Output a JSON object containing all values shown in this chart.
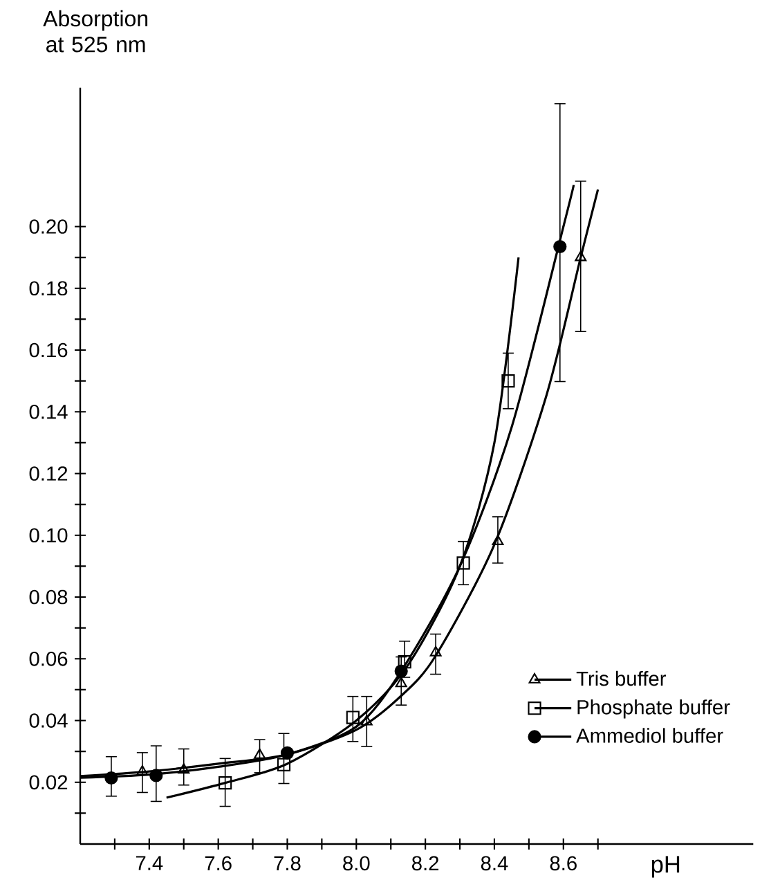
{
  "chart_data": {
    "type": "scatter",
    "xlabel": "pH",
    "ylabel": "Absorption at 525 nm",
    "xlim": [
      7.2,
      9.15
    ],
    "ylim": [
      0,
      0.245
    ],
    "xticks": [
      {
        "value": 7.3,
        "label": null
      },
      {
        "value": 7.4,
        "label": "7.4"
      },
      {
        "value": 7.5,
        "label": null
      },
      {
        "value": 7.6,
        "label": "7.6"
      },
      {
        "value": 7.7,
        "label": null
      },
      {
        "value": 7.8,
        "label": "7.8"
      },
      {
        "value": 7.9,
        "label": null
      },
      {
        "value": 8.0,
        "label": "8.0"
      },
      {
        "value": 8.1,
        "label": null
      },
      {
        "value": 8.2,
        "label": "8.2"
      },
      {
        "value": 8.3,
        "label": null
      },
      {
        "value": 8.4,
        "label": "8.4"
      },
      {
        "value": 8.5,
        "label": null
      },
      {
        "value": 8.6,
        "label": "8.6"
      },
      {
        "value": 8.7,
        "label": null
      }
    ],
    "yticks": [
      {
        "value": 0.01,
        "label": null
      },
      {
        "value": 0.02,
        "label": "0.02"
      },
      {
        "value": 0.03,
        "label": null
      },
      {
        "value": 0.04,
        "label": "0.04"
      },
      {
        "value": 0.05,
        "label": null
      },
      {
        "value": 0.06,
        "label": "0.06"
      },
      {
        "value": 0.07,
        "label": null
      },
      {
        "value": 0.08,
        "label": "0.08"
      },
      {
        "value": 0.09,
        "label": null
      },
      {
        "value": 0.1,
        "label": "0.10"
      },
      {
        "value": 0.11,
        "label": null
      },
      {
        "value": 0.12,
        "label": "0.12"
      },
      {
        "value": 0.13,
        "label": null
      },
      {
        "value": 0.14,
        "label": "0.14"
      },
      {
        "value": 0.15,
        "label": null
      },
      {
        "value": 0.16,
        "label": "0.16"
      },
      {
        "value": 0.17,
        "label": null
      },
      {
        "value": 0.18,
        "label": "0.18"
      },
      {
        "value": 0.19,
        "label": null
      },
      {
        "value": 0.2,
        "label": "0.20"
      }
    ],
    "grid": false,
    "legend": "bottom right",
    "series": [
      {
        "name": "Tris buffer",
        "type": "scatter",
        "marker": "triangle",
        "color": "#000000",
        "x": [
          7.38,
          7.5,
          7.72,
          8.03,
          8.13,
          8.23,
          8.41,
          8.65
        ],
        "values": [
          0.0234,
          0.024,
          0.0288,
          0.0396,
          0.052,
          0.062,
          0.098,
          0.19
        ],
        "errors": [
          [
            0.0167,
            0.0296
          ],
          [
            0.0191,
            0.0308
          ],
          [
            0.0231,
            0.0338
          ],
          [
            0.0316,
            0.0478
          ],
          [
            0.045,
            0.0606
          ],
          [
            0.055,
            0.068
          ],
          [
            0.091,
            0.106
          ],
          [
            0.166,
            0.2147
          ]
        ]
      },
      {
        "name": "Phosphate buffer",
        "type": "scatter",
        "marker": "square",
        "color": "#000000",
        "x": [
          7.62,
          7.79,
          7.99,
          8.14,
          8.31,
          8.44
        ],
        "values": [
          0.0198,
          0.0257,
          0.041,
          0.059,
          0.091,
          0.15
        ],
        "errors": [
          [
            0.0122,
            0.0277
          ],
          [
            0.0196,
            0.0358
          ],
          [
            0.0332,
            0.0478
          ],
          [
            0.054,
            0.0657
          ],
          [
            0.084,
            0.098
          ],
          [
            0.141,
            0.159
          ]
        ]
      },
      {
        "name": "Ammediol buffer",
        "type": "scatter",
        "marker": "circle",
        "color": "#000000",
        "x": [
          7.29,
          7.42,
          7.8,
          8.13,
          8.59
        ],
        "values": [
          0.0214,
          0.0222,
          0.0295,
          0.056,
          0.1935
        ],
        "errors": [
          [
            0.0155,
            0.0283
          ],
          [
            0.0138,
            0.0318
          ],
          null,
          null,
          [
            0.1498,
            0.2398
          ]
        ]
      },
      {
        "type": "line",
        "marker": "none",
        "color": "#000000",
        "x": [
          7.2,
          7.4,
          7.6,
          7.8,
          8.0,
          8.13,
          8.23,
          8.4,
          8.55,
          8.65,
          8.7
        ],
        "values": [
          0.022,
          0.0235,
          0.026,
          0.029,
          0.037,
          0.048,
          0.061,
          0.097,
          0.145,
          0.19,
          0.212
        ]
      },
      {
        "type": "line",
        "marker": "none",
        "color": "#000000",
        "x": [
          7.45,
          7.62,
          7.8,
          8.0,
          8.15,
          8.3,
          8.4,
          8.47
        ],
        "values": [
          0.015,
          0.0198,
          0.026,
          0.04,
          0.058,
          0.09,
          0.13,
          0.19
        ]
      },
      {
        "type": "line",
        "marker": "none",
        "color": "#000000",
        "x": [
          7.2,
          7.4,
          7.6,
          7.8,
          8.0,
          8.13,
          8.3,
          8.45,
          8.6,
          8.63
        ],
        "values": [
          0.0215,
          0.0225,
          0.025,
          0.029,
          0.038,
          0.056,
          0.09,
          0.135,
          0.2,
          0.2135
        ]
      }
    ]
  }
}
